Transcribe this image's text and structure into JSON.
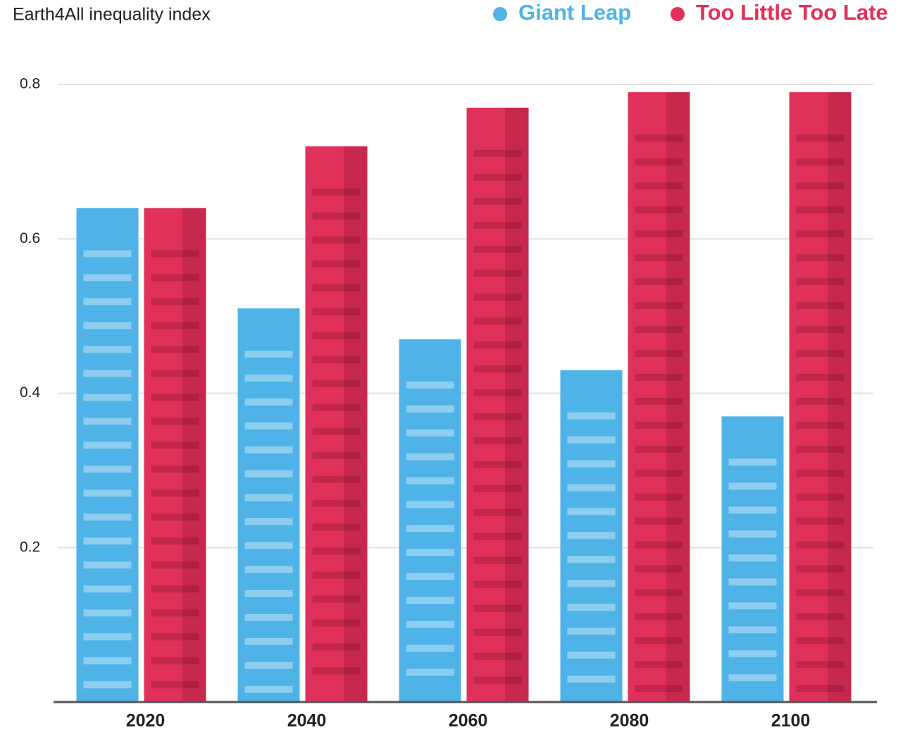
{
  "chart_data": {
    "type": "bar",
    "title": "Earth4All inequality index",
    "categories": [
      "2020",
      "2040",
      "2060",
      "2080",
      "2100"
    ],
    "series": [
      {
        "name": "Giant Leap",
        "color": "#4fb3e8",
        "values": [
          0.64,
          0.51,
          0.47,
          0.43,
          0.37
        ]
      },
      {
        "name": "Too Little Too Late",
        "color": "#e0315a",
        "values": [
          0.64,
          0.72,
          0.77,
          0.79,
          0.79
        ]
      }
    ],
    "ylim": [
      0,
      0.85
    ],
    "yticks": [
      0.2,
      0.4,
      0.6,
      0.8
    ],
    "grid": true,
    "legend": "top-right"
  }
}
